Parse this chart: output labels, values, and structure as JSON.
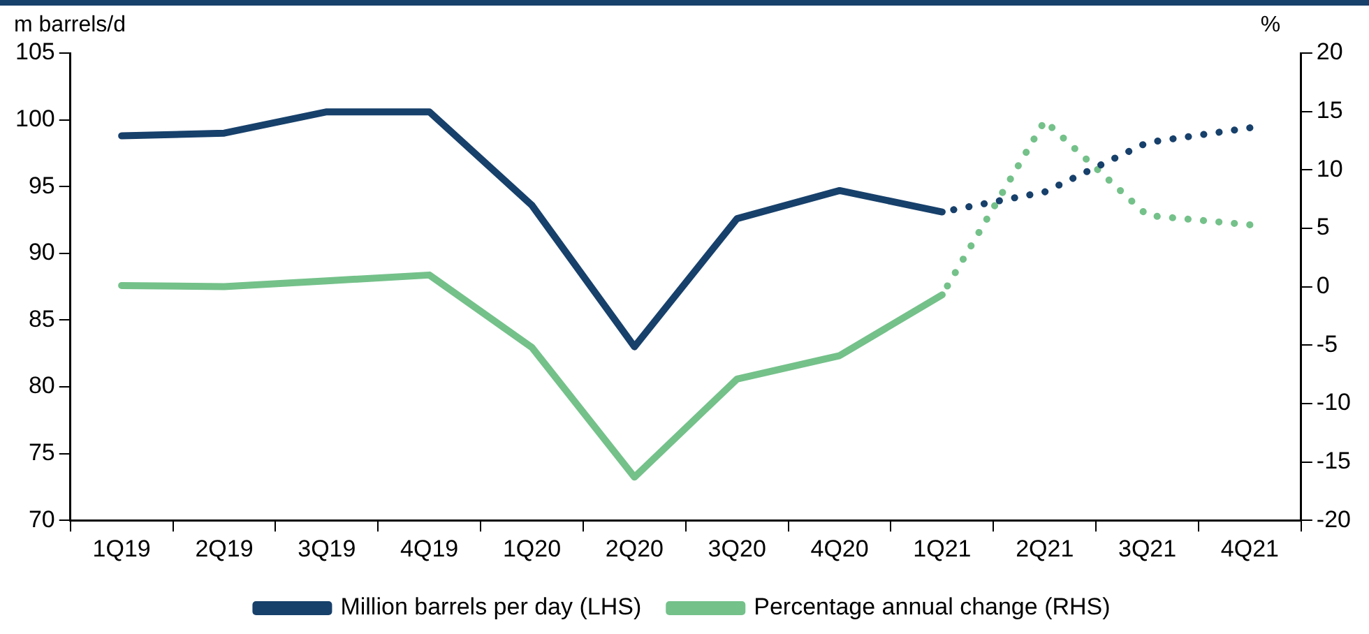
{
  "chart_data": {
    "type": "line",
    "ylabel": "m barrels/d",
    "y2label": "%",
    "categories": [
      "1Q19",
      "2Q19",
      "3Q19",
      "4Q19",
      "1Q20",
      "2Q20",
      "3Q20",
      "4Q20",
      "1Q21",
      "2Q21",
      "3Q21",
      "4Q21"
    ],
    "series": [
      {
        "name": "Million barrels per day (LHS)",
        "color": "#17406b",
        "line_style": "solid",
        "values": [
          98.8,
          99.0,
          100.6,
          100.6,
          93.6,
          83.0,
          92.6,
          94.7,
          93.1,
          null,
          null,
          null
        ]
      },
      {
        "name": "Percentage annual change (RHS)",
        "color": "#74c18a",
        "axis": "y2",
        "line_style": "solid",
        "values": [
          0.1,
          0.0,
          0.5,
          1.0,
          -5.2,
          -16.3,
          -7.9,
          -5.9,
          -0.7,
          null,
          null,
          null
        ]
      },
      {
        "color": "#17406b",
        "line_style": "dotted",
        "values": [
          null,
          null,
          null,
          null,
          null,
          null,
          null,
          null,
          93.1,
          94.6,
          98.3,
          99.4
        ]
      },
      {
        "color": "#74c18a",
        "axis": "y2",
        "line_style": "dotted",
        "values": [
          null,
          null,
          null,
          null,
          null,
          null,
          null,
          null,
          -0.7,
          14.2,
          6.1,
          5.3
        ]
      }
    ],
    "ylim": [
      70,
      105
    ],
    "yticks": [
      70,
      75,
      80,
      85,
      90,
      95,
      100,
      105
    ],
    "y2lim": [
      -20,
      20
    ],
    "y2ticks": [
      -20,
      -15,
      -10,
      -5,
      0,
      5,
      10,
      15,
      20
    ],
    "grid": false,
    "legend": "bottom",
    "marker": "none"
  }
}
